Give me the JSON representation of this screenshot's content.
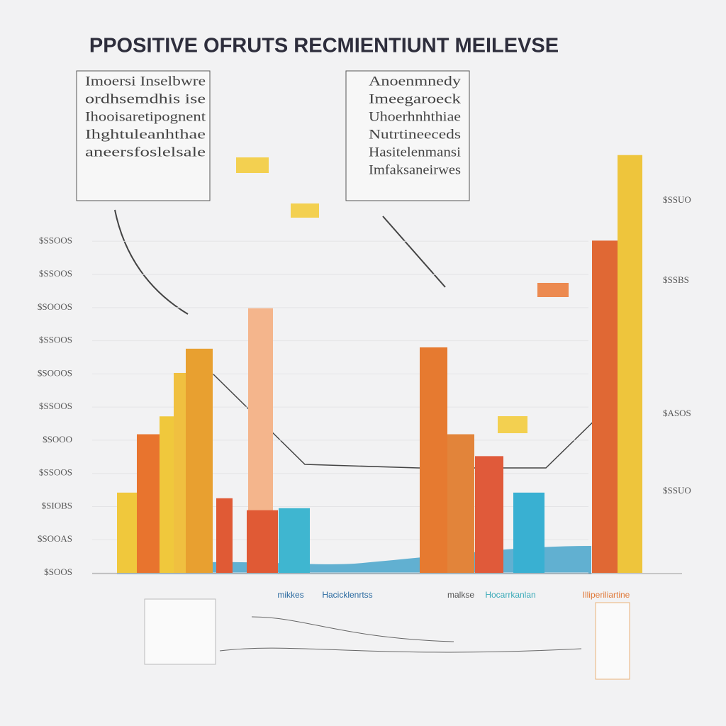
{
  "chart_data": {
    "type": "bar",
    "title": "PPOSITIVE OFRUTS RECMIENTIUNT MEILEVSE",
    "categories": [
      null,
      null,
      null,
      null,
      null,
      null,
      null,
      null,
      null,
      null,
      null,
      null,
      null,
      null,
      null
    ],
    "values": [
      2.42,
      4.18,
      4.72,
      6.03,
      6.76,
      2.25,
      7.98,
      1.89,
      1.95,
      6.8,
      4.18,
      3.52,
      2.42,
      10.02,
      12.6
    ],
    "colors": [
      "#f0c83c",
      "#e8742e",
      "#f0c83c",
      "#f0c040",
      "#e8a030",
      "#e05a35",
      "#f4b58c",
      "#e05a35",
      "#3fb6d0",
      "#e67a30",
      "#e2843a",
      "#e05a3a",
      "#39b0d2",
      "#e06834",
      "#eec53c"
    ],
    "ylim": [
      0,
      13
    ],
    "yticks": [
      {
        "value": 0,
        "label": "$SOOS"
      },
      {
        "value": 1,
        "label": "$SOOAS"
      },
      {
        "value": 2,
        "label": "$SIOBS"
      },
      {
        "value": 3,
        "label": "$SSOOS"
      },
      {
        "value": 4,
        "label": "$SOOO"
      },
      {
        "value": 5,
        "label": "$SSOOS"
      },
      {
        "value": 6,
        "label": "$SOOOS"
      },
      {
        "value": 7,
        "label": "$SSOOS"
      },
      {
        "value": 8,
        "label": "$SOOOS"
      },
      {
        "value": 9,
        "label": "$SSOOS"
      },
      {
        "value": 10,
        "label": "$SSOOS"
      }
    ],
    "right_labels": [
      "$SSUO",
      "$SSBS",
      "$ASOS",
      "$SSUO"
    ],
    "footer_labels": [
      "mikkes",
      "Hacicklenrtss",
      "malkse",
      "Hocarrkanlan",
      "Illiperiliartine"
    ],
    "left_note": [
      "Imoersi Inselbwre",
      "ordhsemdhis ise",
      "Ihooisaretipognent",
      "Ihghtuleanhthae",
      "aneersfoslelsale"
    ],
    "right_note": [
      "Anoenmnedy",
      "Imeegaroeck",
      "Uhoerhnhthiae",
      "Nutrtineeceds",
      "Hasitelenmansi",
      "Imfaksaneirwes"
    ]
  }
}
